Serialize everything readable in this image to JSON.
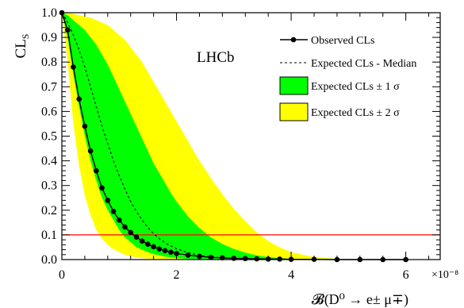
{
  "chart_data": {
    "type": "line",
    "watermark": "LHCb",
    "ylabel_main": "CL",
    "ylabel_sub": "S",
    "xlabel": "𝓑(D⁰ → e± μ∓)",
    "x_multiplier": "×10⁻⁸",
    "xlim": [
      0,
      6.6
    ],
    "ylim": [
      0,
      1.0
    ],
    "x_ticks": [
      0,
      2,
      4,
      6
    ],
    "x_tick_labels": [
      "0",
      "2",
      "4",
      "6"
    ],
    "y_ticks": [
      0.0,
      0.1,
      0.2,
      0.3,
      0.4,
      0.5,
      0.6,
      0.7,
      0.8,
      0.9,
      1.0
    ],
    "y_tick_labels": [
      "0.0",
      "0.1",
      "0.2",
      "0.3",
      "0.4",
      "0.5",
      "0.6",
      "0.7",
      "0.8",
      "0.9",
      "1.0"
    ],
    "reference_line": {
      "y": 0.1,
      "color": "#ff0000"
    },
    "legend": [
      {
        "label": "Observed CLs",
        "kind": "line-marker"
      },
      {
        "label": "Expected CLs - Median",
        "kind": "dashed"
      },
      {
        "label": "Expected CLs ± 1 σ",
        "kind": "box",
        "color": "#00ff00"
      },
      {
        "label": "Expected CLs ± 2 σ",
        "kind": "box",
        "color": "#ffff00"
      }
    ],
    "colors": {
      "band_1sigma": "#00ff00",
      "band_2sigma": "#ffff00",
      "observed": "#000000",
      "median": "#000000",
      "reference": "#ff0000"
    },
    "x": [
      0.0,
      0.1,
      0.2,
      0.3,
      0.4,
      0.5,
      0.6,
      0.7,
      0.8,
      0.9,
      1.0,
      1.1,
      1.2,
      1.3,
      1.4,
      1.5,
      1.6,
      1.7,
      1.8,
      1.9,
      2.0,
      2.2,
      2.4,
      2.6,
      2.8,
      3.0,
      3.2,
      3.4,
      3.6,
      3.8,
      4.0,
      4.4,
      4.8,
      5.2,
      5.6,
      6.0
    ],
    "series": [
      {
        "name": "Observed CLs",
        "values": [
          1.0,
          0.93,
          0.78,
          0.65,
          0.54,
          0.44,
          0.36,
          0.29,
          0.24,
          0.195,
          0.16,
          0.132,
          0.11,
          0.091,
          0.075,
          0.062,
          0.052,
          0.043,
          0.036,
          0.03,
          0.025,
          0.018,
          0.013,
          0.009,
          0.007,
          0.005,
          0.004,
          0.003,
          0.002,
          0.002,
          0.001,
          0.001,
          0.0,
          0.0,
          0.0,
          0.0
        ]
      },
      {
        "name": "Expected CLs - Median",
        "values": [
          1.0,
          0.96,
          0.91,
          0.85,
          0.78,
          0.7,
          0.62,
          0.54,
          0.47,
          0.4,
          0.34,
          0.285,
          0.235,
          0.195,
          0.16,
          0.13,
          0.105,
          0.085,
          0.068,
          0.055,
          0.044,
          0.028,
          0.017,
          0.011,
          0.007,
          0.004,
          0.002,
          0.001,
          0.001,
          0.0,
          0.0,
          0.0,
          0.0,
          0.0,
          0.0,
          0.0
        ]
      },
      {
        "name": "Expected CLs - 1σ",
        "values": [
          1.0,
          0.9,
          0.75,
          0.62,
          0.5,
          0.4,
          0.32,
          0.25,
          0.2,
          0.16,
          0.12,
          0.09,
          0.07,
          0.05,
          0.04,
          0.03,
          0.022,
          0.017,
          0.012,
          0.009,
          0.006,
          0.003,
          0.001,
          0.0,
          0.0,
          0.0,
          0.0,
          0.0,
          0.0,
          0.0,
          0.0,
          0.0,
          0.0,
          0.0,
          0.0,
          0.0
        ]
      },
      {
        "name": "Expected CLs + 1σ",
        "values": [
          1.0,
          0.99,
          0.97,
          0.95,
          0.93,
          0.9,
          0.87,
          0.83,
          0.79,
          0.74,
          0.69,
          0.64,
          0.59,
          0.54,
          0.49,
          0.44,
          0.39,
          0.35,
          0.31,
          0.27,
          0.235,
          0.175,
          0.128,
          0.09,
          0.063,
          0.043,
          0.028,
          0.017,
          0.01,
          0.006,
          0.003,
          0.001,
          0.0,
          0.0,
          0.0,
          0.0
        ]
      },
      {
        "name": "Expected CLs - 2σ",
        "values": [
          1.0,
          0.8,
          0.55,
          0.38,
          0.26,
          0.18,
          0.12,
          0.085,
          0.06,
          0.042,
          0.03,
          0.02,
          0.013,
          0.009,
          0.006,
          0.004,
          0.002,
          0.001,
          0.001,
          0.0,
          0.0,
          0.0,
          0.0,
          0.0,
          0.0,
          0.0,
          0.0,
          0.0,
          0.0,
          0.0,
          0.0,
          0.0,
          0.0,
          0.0,
          0.0,
          0.0
        ]
      },
      {
        "name": "Expected CLs + 2σ",
        "values": [
          1.0,
          1.0,
          0.995,
          0.99,
          0.985,
          0.98,
          0.97,
          0.96,
          0.95,
          0.93,
          0.91,
          0.89,
          0.86,
          0.83,
          0.8,
          0.76,
          0.72,
          0.68,
          0.64,
          0.6,
          0.56,
          0.48,
          0.4,
          0.33,
          0.265,
          0.205,
          0.155,
          0.11,
          0.075,
          0.05,
          0.03,
          0.01,
          0.003,
          0.0,
          0.0,
          0.0
        ]
      }
    ]
  }
}
